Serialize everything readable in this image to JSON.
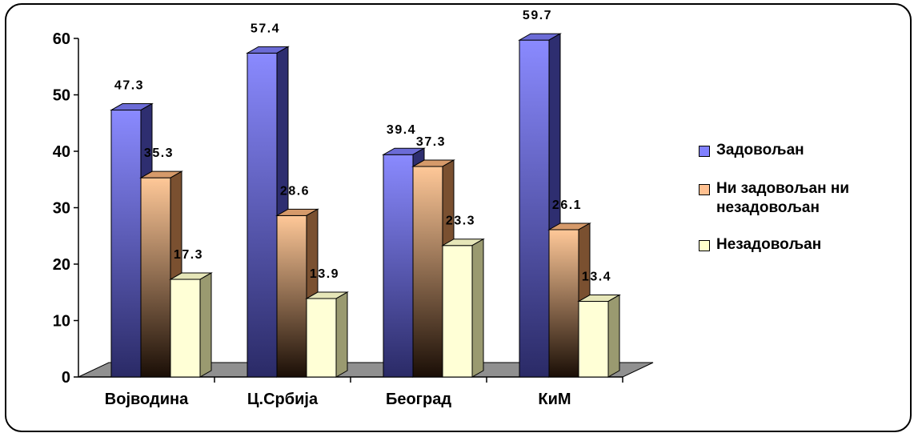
{
  "chart_data": {
    "type": "bar",
    "categories": [
      "Војводина",
      "Ц.Србија",
      "Београд",
      "КиМ"
    ],
    "series": [
      {
        "name": "Задовољан",
        "values": [
          47.3,
          57.4,
          39.4,
          59.7
        ],
        "color": "#8080ff"
      },
      {
        "name": "Ни задовољан ни незадовољан",
        "values": [
          35.3,
          28.6,
          37.3,
          26.1
        ],
        "color": "#ffc090"
      },
      {
        "name": "Незадовољан",
        "values": [
          17.3,
          13.9,
          23.3,
          13.4
        ],
        "color": "#ffffcc"
      }
    ],
    "y_ticks": [
      "0",
      "10",
      "20",
      "30",
      "40",
      "50",
      "60"
    ],
    "ylim": [
      0,
      60
    ],
    "grid": false,
    "legend_position": "right",
    "three_d": true
  }
}
